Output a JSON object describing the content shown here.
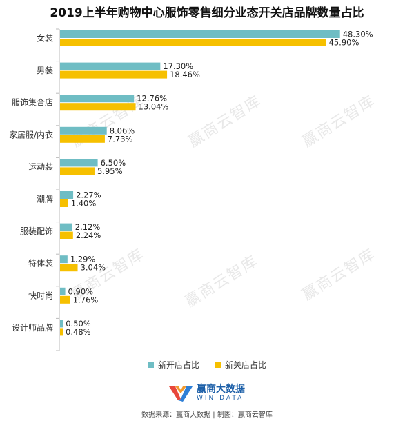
{
  "chart_data": {
    "type": "bar",
    "orientation": "horizontal",
    "title": "2019上半年购物中心服饰零售细分业态开关店品牌数量占比",
    "categories": [
      "女装",
      "男装",
      "服饰集合店",
      "家居服/内衣",
      "运动装",
      "潮牌",
      "服装配饰",
      "特体装",
      "快时尚",
      "设计师品牌"
    ],
    "series": [
      {
        "name": "新开店占比",
        "color": "#6fbdc4",
        "values": [
          48.3,
          17.3,
          12.76,
          8.06,
          6.5,
          2.27,
          2.12,
          1.29,
          0.9,
          0.5
        ],
        "labels": [
          "48.30%",
          "17.30%",
          "12.76%",
          "8.06%",
          "6.50%",
          "2.27%",
          "2.12%",
          "1.29%",
          "0.90%",
          "0.50%"
        ]
      },
      {
        "name": "新关店占比",
        "color": "#f6c000",
        "values": [
          45.9,
          18.46,
          13.04,
          7.73,
          5.95,
          1.4,
          2.24,
          3.04,
          1.76,
          0.48
        ],
        "labels": [
          "45.90%",
          "18.46%",
          "13.04%",
          "7.73%",
          "5.95%",
          "1.40%",
          "2.24%",
          "3.04%",
          "1.76%",
          "0.48%"
        ]
      }
    ],
    "xlim": [
      0,
      50
    ],
    "grid": false,
    "legend": "bottom"
  },
  "watermark": "赢商云智库",
  "logo": {
    "name": "赢商大数据",
    "sub": "WIN DATA"
  },
  "source": "数据来源：赢商大数据 | 制图：赢商云智库"
}
